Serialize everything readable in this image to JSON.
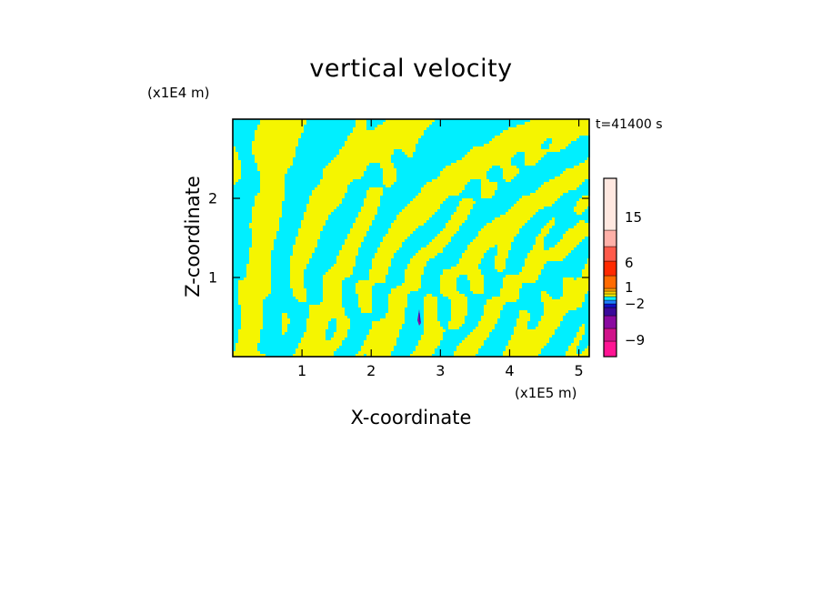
{
  "chart_data": {
    "type": "heatmap",
    "title": "vertical velocity",
    "xlabel": "X-coordinate",
    "ylabel": "Z-coordinate",
    "x_unit": "(x1E5 m)",
    "y_unit": "(x1E4 m)",
    "time_label": "t=41400 s",
    "xlim": [
      0,
      5.15
    ],
    "ylim": [
      0,
      3.0
    ],
    "x_ticks": [
      "1",
      "2",
      "3",
      "4",
      "5"
    ],
    "x_tick_values": [
      1,
      2,
      3,
      4,
      5
    ],
    "y_ticks": [
      "1",
      "2"
    ],
    "y_tick_values": [
      1,
      2
    ],
    "colorbar": {
      "levels": [
        {
          "color": "#ff1493"
        },
        {
          "color": "#d0128a"
        },
        {
          "color": "#8a0aa0"
        },
        {
          "color": "#3a0a9a"
        },
        {
          "color": "#1010c8"
        },
        {
          "color": "#1e7fff"
        },
        {
          "color": "#00f0ff"
        },
        {
          "color": "#f2f200"
        },
        {
          "color": "#ffd000"
        },
        {
          "color": "#ff9f00"
        },
        {
          "color": "#ff6a00"
        },
        {
          "color": "#ff2a00"
        },
        {
          "color": "#ff5a4a"
        },
        {
          "color": "#ffb0a8"
        },
        {
          "color": "#ffe8e0"
        }
      ],
      "tick_labels": [
        "15",
        "6",
        "1",
        "−2",
        "−9"
      ],
      "tick_values": [
        15,
        6,
        1,
        -2,
        -9
      ]
    },
    "field_colors": {
      "positive": "#f5f500",
      "negative": "#00efff"
    },
    "grid": false
  }
}
